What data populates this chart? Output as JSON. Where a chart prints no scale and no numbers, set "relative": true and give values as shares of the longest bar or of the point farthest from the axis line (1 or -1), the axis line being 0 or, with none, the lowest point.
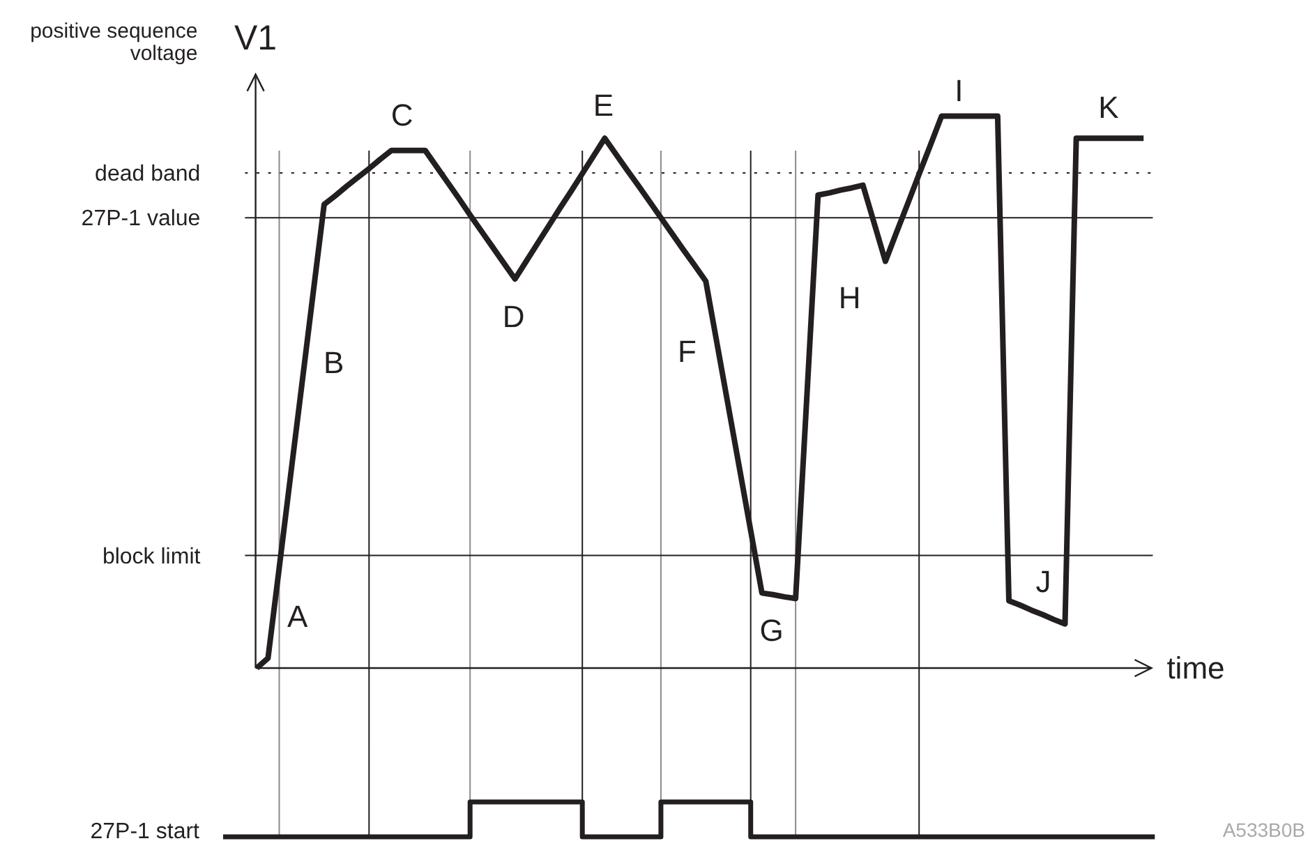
{
  "chart_data": [
    {
      "type": "line",
      "title": "positive sequence voltage",
      "ylabel": "V1",
      "xlabel": "time",
      "relative": true,
      "grid": "x",
      "categories": [
        null,
        null,
        null,
        null,
        null,
        null,
        null,
        null,
        null,
        null,
        null,
        null,
        null,
        null,
        null,
        null,
        null,
        null,
        null,
        null,
        null,
        null,
        null,
        null,
        null,
        null,
        null,
        null,
        null,
        null,
        null,
        null,
        null,
        null,
        null,
        null,
        null,
        null,
        null,
        null,
        null,
        null,
        null,
        null,
        null,
        null,
        null,
        null,
        null,
        null,
        null,
        null,
        null,
        null,
        null,
        null,
        null,
        null,
        null,
        null,
        null,
        null,
        null,
        null,
        null,
        null,
        null,
        null,
        null,
        null,
        null,
        null,
        null,
        null,
        null,
        null,
        null,
        null,
        null,
        null
      ],
      "series": [
        {
          "color": "#231f20",
          "values": [
            0,
            0.018,
            0.182,
            0.347,
            0.511,
            0.676,
            0.84,
            0.856,
            0.873,
            0.889,
            0.905,
            0.922,
            0.938,
            0.938,
            0.938,
            0.938,
            0.909,
            0.88,
            0.851,
            0.821,
            0.792,
            0.763,
            0.734,
            0.705,
            0.737,
            0.769,
            0.801,
            0.833,
            0.864,
            0.896,
            0.928,
            0.96,
            0.931,
            0.902,
            0.874,
            0.845,
            0.816,
            0.787,
            0.758,
            0.73,
            0.701,
            0.588,
            0.475,
            0.362,
            0.249,
            0.136,
            0.133,
            0.129,
            0.126,
            0.491,
            0.857,
            0.861,
            0.866,
            0.87,
            0.875,
            0.806,
            0.737,
            0.79,
            0.842,
            0.895,
            0.947,
            1,
            1,
            1,
            1,
            1,
            1,
            0.122,
            0.114,
            0.105,
            0.097,
            0.088,
            0.08,
            0.96,
            0.96,
            0.96,
            0.96,
            0.96,
            0.96,
            0.96
          ]
        }
      ],
      "ref_lines": [
        {
          "axis": "y",
          "value": 0.897,
          "label": "dead band",
          "line_style": "dotted",
          "color": "#231f20"
        },
        {
          "axis": "y",
          "value": 0.816,
          "label": "27P-1 value",
          "color": "#231f20"
        },
        {
          "axis": "y",
          "value": 0.204,
          "label": "block limit",
          "color": "#231f20"
        }
      ],
      "annotations": [
        "A",
        "B",
        "C",
        "D",
        "E",
        "F",
        "G",
        "H",
        "I",
        "J",
        "K"
      ]
    },
    {
      "type": "step",
      "relative": true,
      "grid": "x",
      "categories": [
        null,
        null,
        null,
        null,
        null,
        null,
        null,
        null,
        null,
        null,
        null,
        null,
        null,
        null,
        null,
        null,
        null,
        null,
        null,
        null,
        null,
        null,
        null,
        null,
        null,
        null,
        null,
        null,
        null,
        null,
        null,
        null,
        null,
        null,
        null,
        null,
        null,
        null,
        null,
        null,
        null,
        null,
        null,
        null,
        null,
        null,
        null,
        null,
        null,
        null,
        null,
        null,
        null,
        null,
        null,
        null,
        null,
        null,
        null,
        null,
        null,
        null,
        null,
        null,
        null,
        null,
        null,
        null,
        null,
        null,
        null,
        null,
        null,
        null,
        null,
        null,
        null,
        null,
        null,
        null,
        null,
        null,
        null,
        null
      ],
      "series": [
        {
          "name": "27P-1 start",
          "color": "#231f20",
          "values": [
            0,
            0,
            0,
            0,
            0,
            0,
            0,
            0,
            0,
            0,
            0,
            0,
            0,
            0,
            0,
            0,
            0,
            0,
            0,
            0,
            0,
            0,
            1,
            1,
            1,
            1,
            1,
            1,
            1,
            1,
            1,
            1,
            0,
            0,
            0,
            0,
            0,
            0,
            0,
            1,
            1,
            1,
            1,
            1,
            1,
            1,
            1,
            0,
            0,
            0,
            0,
            0,
            0,
            0,
            0,
            0,
            0,
            0,
            0,
            0,
            0,
            0,
            0,
            0,
            0,
            0,
            0,
            0,
            0,
            0,
            0,
            0,
            0,
            0,
            0,
            0,
            0,
            0,
            0,
            0,
            0,
            0,
            0,
            0
          ]
        }
      ],
      "annotations": [
        "A533B0B"
      ]
    }
  ]
}
